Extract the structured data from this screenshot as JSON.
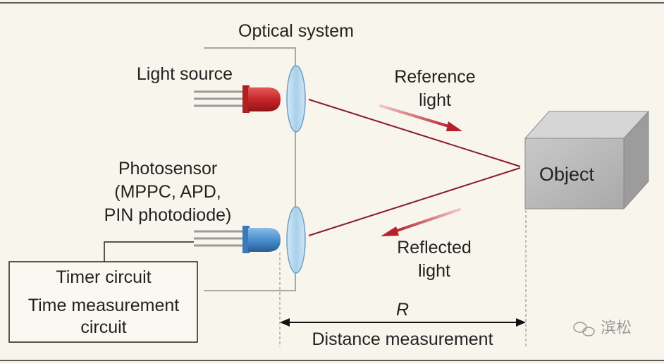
{
  "labels": {
    "optical_system": "Optical system",
    "light_source": "Light source",
    "photosensor_line1": "Photosensor",
    "photosensor_line2": "(MPPC, APD,",
    "photosensor_line3": "PIN photodiode)",
    "timer_line1": "Timer circuit",
    "timer_line2": "Time measurement",
    "timer_line3": "circuit",
    "reference_line1": "Reference",
    "reference_line2": "light",
    "reflected_line1": "Reflected",
    "reflected_line2": "light",
    "object": "Object",
    "distance_symbol": "R",
    "distance_label": "Distance measurement",
    "watermark": "滨松"
  },
  "icons": {
    "light_source": "red-led-icon",
    "photosensor": "blue-photodiode-icon",
    "lens": "convex-lens-icon",
    "object": "cube-icon",
    "watermark": "wechat-logo-icon"
  },
  "colors": {
    "background": "#f7f5ec",
    "frame_rule": "#2a2a2a",
    "optics_outline": "#a8a8a8",
    "lens_fill": "#b9d9ee",
    "lens_stroke": "#6d9fc4",
    "led_red": "#c8262a",
    "led_blue": "#4a8fd0",
    "beam": "#8c1c2c",
    "direction_arrow": "#b5202e",
    "cube_front": "#bdbdbd",
    "cube_top": "#d6d6d6",
    "cube_side": "#9c9c9c",
    "text": "#222222"
  }
}
